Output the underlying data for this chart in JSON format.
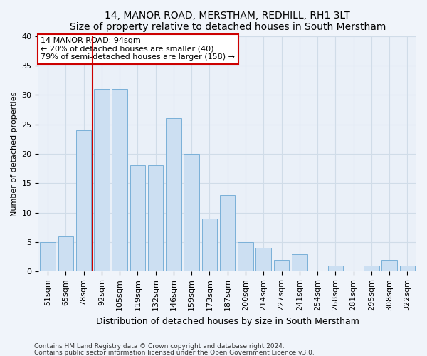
{
  "title1": "14, MANOR ROAD, MERSTHAM, REDHILL, RH1 3LT",
  "title2": "Size of property relative to detached houses in South Merstham",
  "xlabel": "Distribution of detached houses by size in South Merstham",
  "ylabel": "Number of detached properties",
  "categories": [
    "51sqm",
    "65sqm",
    "78sqm",
    "92sqm",
    "105sqm",
    "119sqm",
    "132sqm",
    "146sqm",
    "159sqm",
    "173sqm",
    "187sqm",
    "200sqm",
    "214sqm",
    "227sqm",
    "241sqm",
    "254sqm",
    "268sqm",
    "281sqm",
    "295sqm",
    "308sqm",
    "322sqm"
  ],
  "values": [
    5,
    6,
    24,
    31,
    31,
    18,
    18,
    26,
    20,
    9,
    13,
    5,
    4,
    2,
    3,
    0,
    1,
    0,
    1,
    2,
    1
  ],
  "bar_color": "#ccdff2",
  "bar_edge_color": "#7ab0d8",
  "vline_x": 2.5,
  "vline_color": "#cc0000",
  "box_edge_color": "#cc0000",
  "property_label": "14 MANOR ROAD: 94sqm",
  "annotation_line1": "← 20% of detached houses are smaller (40)",
  "annotation_line2": "79% of semi-detached houses are larger (158) →",
  "ylim": [
    0,
    40
  ],
  "yticks": [
    0,
    5,
    10,
    15,
    20,
    25,
    30,
    35,
    40
  ],
  "footer1": "Contains HM Land Registry data © Crown copyright and database right 2024.",
  "footer2": "Contains public sector information licensed under the Open Government Licence v3.0.",
  "fig_bg_color": "#f0f4fa",
  "plot_bg_color": "#eaf0f8",
  "grid_color": "#d0dce8",
  "title1_fontsize": 10,
  "title2_fontsize": 9,
  "xlabel_fontsize": 9,
  "ylabel_fontsize": 8,
  "tick_fontsize": 8,
  "annot_fontsize": 8,
  "footer_fontsize": 6.5
}
